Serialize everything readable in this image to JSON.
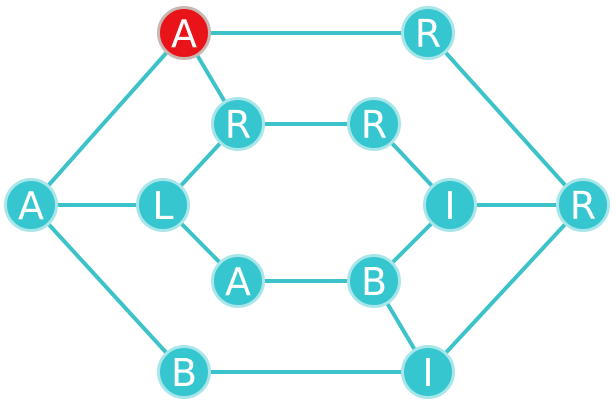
{
  "colors": {
    "node_fill": "#35c6cf",
    "node_ring": "#a9e6ea",
    "selected_fill": "#e8141a",
    "selected_ring": "#c8b7b2",
    "edge": "#3cc3c9",
    "letter": "#ffffff"
  },
  "nodes": [
    {
      "id": "n0",
      "letter": "A",
      "selected": true
    },
    {
      "id": "n1",
      "letter": "R",
      "selected": false
    },
    {
      "id": "n2",
      "letter": "R",
      "selected": false
    },
    {
      "id": "n3",
      "letter": "R",
      "selected": false
    },
    {
      "id": "n4",
      "letter": "A",
      "selected": false
    },
    {
      "id": "n5",
      "letter": "L",
      "selected": false
    },
    {
      "id": "n6",
      "letter": "I",
      "selected": false
    },
    {
      "id": "n7",
      "letter": "R",
      "selected": false
    },
    {
      "id": "n8",
      "letter": "A",
      "selected": false
    },
    {
      "id": "n9",
      "letter": "B",
      "selected": false
    },
    {
      "id": "n10",
      "letter": "B",
      "selected": false
    },
    {
      "id": "n11",
      "letter": "I",
      "selected": false
    }
  ],
  "edges": [
    [
      "n0",
      "n1"
    ],
    [
      "n0",
      "n4"
    ],
    [
      "n0",
      "n2"
    ],
    [
      "n1",
      "n7"
    ],
    [
      "n2",
      "n3"
    ],
    [
      "n2",
      "n5"
    ],
    [
      "n3",
      "n6"
    ],
    [
      "n4",
      "n5"
    ],
    [
      "n4",
      "n10"
    ],
    [
      "n5",
      "n8"
    ],
    [
      "n6",
      "n7"
    ],
    [
      "n6",
      "n9"
    ],
    [
      "n7",
      "n11"
    ],
    [
      "n8",
      "n9"
    ],
    [
      "n9",
      "n11"
    ],
    [
      "n10",
      "n11"
    ]
  ]
}
